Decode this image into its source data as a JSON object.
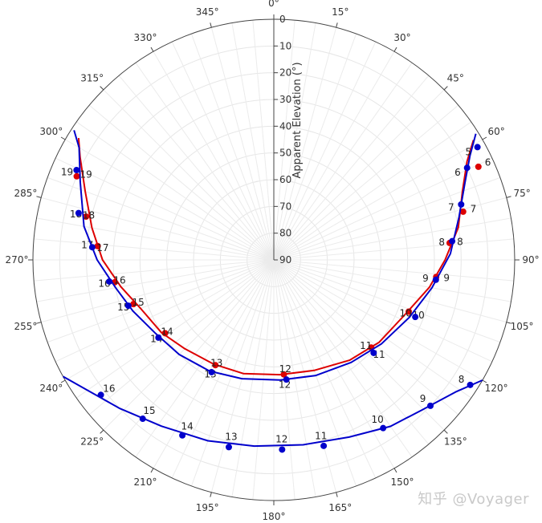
{
  "chart_data": {
    "type": "polar-scatter-line",
    "radial_axis": {
      "title": "Apparent Elevation (°)",
      "range": [
        0,
        90
      ],
      "reversed": true,
      "tick_labels": [
        "0",
        "10",
        "20",
        "30",
        "40",
        "50",
        "60",
        "70",
        "80",
        "90"
      ]
    },
    "angular_axis": {
      "direction": "clockwise",
      "rotation": "north-up",
      "tick_labels": [
        "0°",
        "15°",
        "30°",
        "45°",
        "60°",
        "75°",
        "90°",
        "105°",
        "120°",
        "135°",
        "150°",
        "165°",
        "180°",
        "195°",
        "210°",
        "225°",
        "240°",
        "255°",
        "270°",
        "285°",
        "300°",
        "315°",
        "330°",
        "345°"
      ]
    },
    "grid": true,
    "series": [
      {
        "color": "#dd0000",
        "curve": [
          [
            59,
            3
          ],
          [
            63,
            9
          ],
          [
            70,
            15
          ],
          [
            80,
            20
          ],
          [
            90,
            26
          ],
          [
            100,
            31
          ],
          [
            113,
            37
          ],
          [
            128,
            40
          ],
          [
            143,
            43
          ],
          [
            160,
            46
          ],
          [
            177,
            47
          ],
          [
            195,
            46
          ],
          [
            210,
            45
          ],
          [
            225,
            43
          ],
          [
            237,
            40
          ],
          [
            250,
            37
          ],
          [
            260,
            32
          ],
          [
            270,
            26
          ],
          [
            280,
            21
          ],
          [
            290,
            15
          ],
          [
            298,
            8
          ],
          [
            302,
            4
          ]
        ],
        "points": [
          {
            "hour": "6",
            "az": 65.5,
            "el": 6
          },
          {
            "hour": "7",
            "az": 75.7,
            "el": 17
          },
          {
            "hour": "8",
            "az": 84.5,
            "el": 24
          },
          {
            "hour": "9",
            "az": 96.0,
            "el": 29
          },
          {
            "hour": "10",
            "az": 111.0,
            "el": 36
          },
          {
            "hour": "11",
            "az": 132.0,
            "el": 41
          },
          {
            "hour": "12",
            "az": 175.0,
            "el": 47
          },
          {
            "hour": "13",
            "az": 209.0,
            "el": 45
          },
          {
            "hour": "14",
            "az": 236.0,
            "el": 41
          },
          {
            "hour": "15",
            "az": 252.5,
            "el": 35
          },
          {
            "hour": "16",
            "az": 262.0,
            "el": 30
          },
          {
            "hour": "17",
            "az": 274.5,
            "el": 24
          },
          {
            "hour": "18",
            "az": 283.0,
            "el": 18
          },
          {
            "hour": "19",
            "az": 293.0,
            "el": 10
          }
        ]
      },
      {
        "color": "#0000cc",
        "curve": [
          [
            58,
            1
          ],
          [
            62,
            7
          ],
          [
            68,
            13
          ],
          [
            77,
            19
          ],
          [
            88,
            24
          ],
          [
            100,
            30
          ],
          [
            113,
            35
          ],
          [
            128,
            39
          ],
          [
            143,
            42
          ],
          [
            160,
            44
          ],
          [
            177,
            45
          ],
          [
            195,
            44
          ],
          [
            210,
            42
          ],
          [
            225,
            40
          ],
          [
            238,
            38
          ],
          [
            250,
            34
          ],
          [
            260,
            30
          ],
          [
            270,
            24
          ],
          [
            280,
            18
          ],
          [
            292,
            12
          ],
          [
            300,
            6
          ],
          [
            303,
            1
          ]
        ],
        "points": [
          {
            "hour": "5",
            "az": 61.0,
            "el": 3
          },
          {
            "hour": "6",
            "az": 64.5,
            "el": 10
          },
          {
            "hour": "7",
            "az": 73.5,
            "el": 17
          },
          {
            "hour": "8",
            "az": 84.0,
            "el": 23
          },
          {
            "hour": "9",
            "az": 97.0,
            "el": 29
          },
          {
            "hour": "10",
            "az": 112.0,
            "el": 33
          },
          {
            "hour": "11",
            "az": 133.0,
            "el": 39
          },
          {
            "hour": "12",
            "az": 174.0,
            "el": 45
          },
          {
            "hour": "13",
            "az": 209.0,
            "el": 42
          },
          {
            "hour": "14",
            "az": 236.0,
            "el": 38
          },
          {
            "hour": "15",
            "az": 252.5,
            "el": 33
          },
          {
            "hour": "16",
            "az": 262.5,
            "el": 28
          },
          {
            "hour": "17",
            "az": 274.0,
            "el": 22
          },
          {
            "hour": "18",
            "az": 283.5,
            "el": 15
          },
          {
            "hour": "19",
            "az": 294.5,
            "el": 9
          }
        ]
      },
      {
        "color": "#0000cc",
        "curve": [
          [
            120,
            0
          ],
          [
            126,
            6
          ],
          [
            135,
            11
          ],
          [
            145,
            14
          ],
          [
            157,
            18
          ],
          [
            171,
            20
          ],
          [
            186,
            20
          ],
          [
            200,
            18
          ],
          [
            214,
            15
          ],
          [
            226,
            10
          ],
          [
            235,
            5
          ],
          [
            241,
            0
          ]
        ],
        "points": [
          {
            "hour": "8",
            "az": 122.5,
            "el": 3
          },
          {
            "hour": "9",
            "az": 133.0,
            "el": 10
          },
          {
            "hour": "10",
            "az": 147.0,
            "el": 15
          },
          {
            "hour": "11",
            "az": 165.0,
            "el": 18
          },
          {
            "hour": "12",
            "az": 177.5,
            "el": 19
          },
          {
            "hour": "13",
            "az": 193.5,
            "el": 18
          },
          {
            "hour": "14",
            "az": 207.5,
            "el": 16
          },
          {
            "hour": "15",
            "az": 219.5,
            "el": 13
          },
          {
            "hour": "16",
            "az": 232.0,
            "el": 8
          }
        ]
      }
    ]
  },
  "watermark": "知乎 @Voyager"
}
